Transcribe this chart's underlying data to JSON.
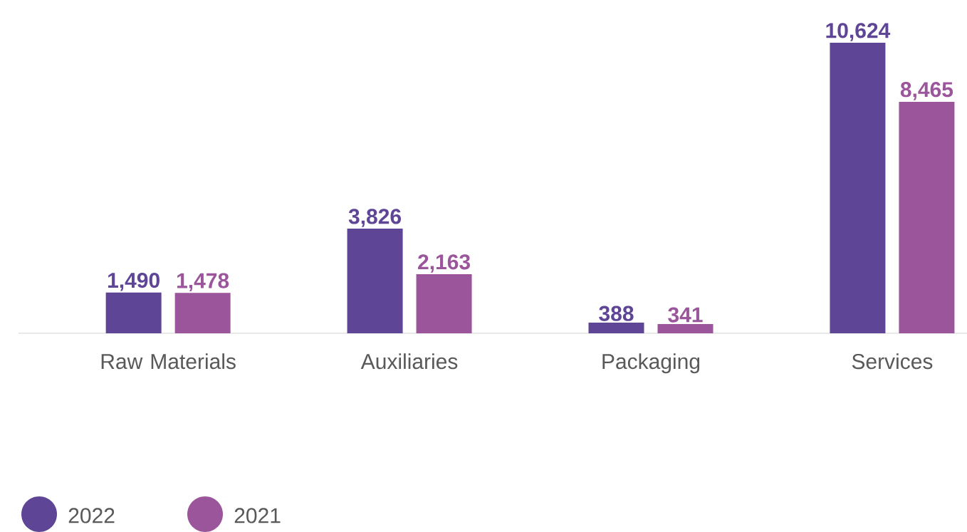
{
  "chart_data": {
    "type": "bar",
    "categories": [
      "Raw Materials",
      "Auxiliaries",
      "Packaging",
      "Services"
    ],
    "series": [
      {
        "name": "2022",
        "color": "#5e4596",
        "values": [
          1490,
          3826,
          388,
          10624
        ],
        "value_labels": [
          "1,490",
          "3,826",
          "388",
          "10,624"
        ]
      },
      {
        "name": "2021",
        "color": "#9b559b",
        "values": [
          1478,
          2163,
          341,
          8465
        ],
        "value_labels": [
          "1,478",
          "2,163",
          "341",
          "8,465"
        ]
      }
    ],
    "legend": "bottom left"
  }
}
